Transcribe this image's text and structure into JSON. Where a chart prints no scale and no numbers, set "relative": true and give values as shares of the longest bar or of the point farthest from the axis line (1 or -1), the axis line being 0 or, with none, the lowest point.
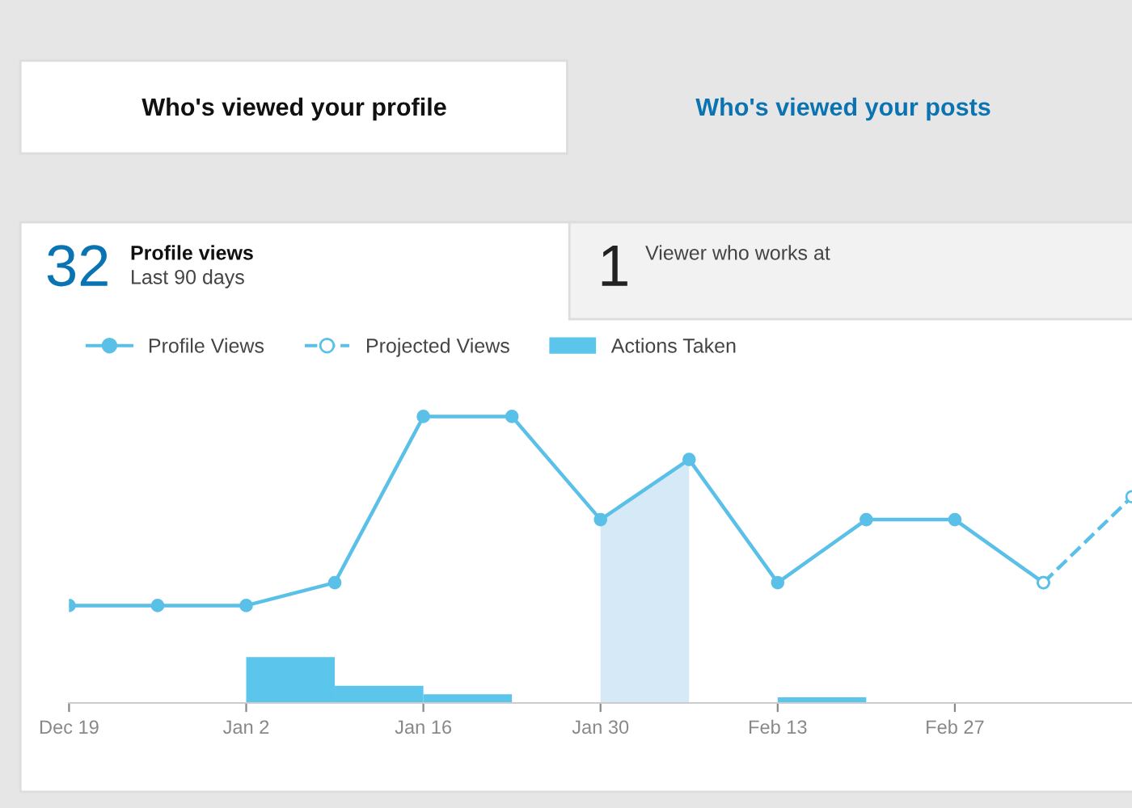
{
  "chart_data": {
    "type": "line",
    "relative": true,
    "annotations": [
      "Who's viewed your profile",
      "Who's viewed your posts",
      "32",
      "Profile views",
      "Last 90 days",
      "1",
      "Viewer who works at"
    ],
    "categories": [
      "Dec 19",
      null,
      "Jan 2",
      null,
      "Jan 16",
      null,
      "Jan 30",
      null,
      "Feb 13",
      null,
      "Feb 27",
      null,
      null
    ],
    "series": [
      {
        "type": "area",
        "color": "#d6e9f7",
        "values": [
          null,
          null,
          null,
          null,
          null,
          null,
          0.64,
          0.85,
          null,
          null,
          null,
          null,
          null
        ]
      },
      {
        "name": "Profile Views",
        "color": "#5bc0e8",
        "marker": "circle",
        "line_style": "solid",
        "values": [
          0.34,
          0.34,
          0.34,
          0.42,
          1.0,
          1.0,
          0.64,
          0.85,
          0.42,
          0.64,
          0.64,
          0.42,
          null
        ]
      },
      {
        "name": "Projected Views",
        "color": "#5bc0e8",
        "marker": "circle",
        "line_style": "dashed",
        "values": [
          null,
          null,
          null,
          null,
          null,
          null,
          null,
          null,
          null,
          null,
          null,
          0.42,
          0.72
        ]
      },
      {
        "name": "Actions Taken",
        "type": "bar",
        "color": "#5bc5ec",
        "values": [
          null,
          null,
          0.16,
          0.06,
          0.03,
          null,
          null,
          null,
          0.02,
          null,
          null,
          null,
          null
        ]
      }
    ],
    "legend": "top left",
    "grid": false
  }
}
